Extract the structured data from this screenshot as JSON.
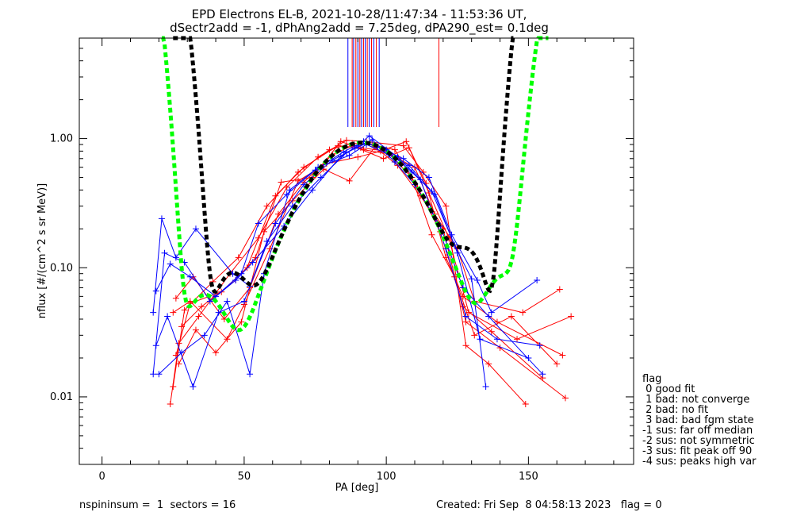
{
  "chart_data": {
    "type": "line",
    "title_line1": "EPD Electrons EL-B, 2021-10-28/11:47:34 - 11:53:36 UT,",
    "title_line2": "dSectr2add = -1, dPhAng2add = 7.25deg, dPA290_est=   0.1deg",
    "xlabel": "PA [deg]",
    "ylabel": "nflux [#/(cm^2 s sr MeV)]",
    "xlim": [
      -8,
      187
    ],
    "ylim": [
      0.003,
      6.0
    ],
    "yscale": "log",
    "x_ticks": [
      0,
      50,
      100,
      150
    ],
    "y_ticks": [
      0.01,
      0.1,
      1.0
    ],
    "x_tick_labels": [
      "0",
      "50",
      "100",
      "150"
    ],
    "y_tick_labels": [
      "0.01",
      "0.10",
      "1.00"
    ],
    "top_tick_colors": [
      "#0000ff",
      "#ff0000"
    ],
    "top_ticks_pa": [
      86.5,
      88.0,
      88.5,
      89.3,
      90.0,
      90.7,
      91.3,
      92.0,
      92.6,
      93.3,
      94.0,
      94.8,
      95.6,
      96.5,
      97.5,
      118.5
    ],
    "series": [
      {
        "color": "#ff0000",
        "values": [
          [
            24,
            0.0088
          ],
          [
            27,
            0.026
          ],
          [
            34,
            0.042
          ],
          [
            45,
            0.09
          ],
          [
            55,
            0.17
          ],
          [
            65,
            0.42
          ],
          [
            76,
            0.72
          ],
          [
            86,
            0.97
          ],
          [
            93,
            0.95
          ],
          [
            106,
            0.88
          ],
          [
            113,
            0.55
          ],
          [
            121,
            0.3
          ],
          [
            128,
            0.025
          ],
          [
            136,
            0.018
          ],
          [
            149,
            0.0088
          ]
        ]
      },
      {
        "color": "#ff0000",
        "values": [
          [
            25,
            0.012
          ],
          [
            29,
            0.047
          ],
          [
            39,
            0.078
          ],
          [
            48,
            0.12
          ],
          [
            58,
            0.3
          ],
          [
            69,
            0.55
          ],
          [
            80,
            0.82
          ],
          [
            88,
            0.92
          ],
          [
            95,
            0.9
          ],
          [
            103,
            0.82
          ],
          [
            111,
            0.42
          ],
          [
            119,
            0.19
          ],
          [
            127,
            0.05
          ],
          [
            137,
            0.032
          ],
          [
            155,
            0.014
          ]
        ]
      },
      {
        "color": "#ff0000",
        "values": [
          [
            26,
            0.021
          ],
          [
            31,
            0.053
          ],
          [
            42,
            0.065
          ],
          [
            51,
            0.1
          ],
          [
            61,
            0.36
          ],
          [
            71,
            0.6
          ],
          [
            83,
            0.88
          ],
          [
            91,
            0.85
          ],
          [
            100,
            0.8
          ],
          [
            109,
            0.5
          ],
          [
            116,
            0.18
          ],
          [
            124,
            0.085
          ],
          [
            131,
            0.03
          ],
          [
            144,
            0.042
          ],
          [
            160,
            0.018
          ]
        ]
      },
      {
        "color": "#ff0000",
        "values": [
          [
            27,
            0.018
          ],
          [
            33,
            0.033
          ],
          [
            40,
            0.022
          ],
          [
            49,
            0.038
          ],
          [
            57,
            0.19
          ],
          [
            67,
            0.33
          ],
          [
            78,
            0.58
          ],
          [
            87,
            0.47
          ],
          [
            96,
            0.86
          ],
          [
            104,
            0.62
          ],
          [
            112,
            0.36
          ],
          [
            120,
            0.2
          ],
          [
            128,
            0.038
          ],
          [
            140,
            0.024
          ],
          [
            163,
            0.0098
          ]
        ]
      },
      {
        "color": "#ff0000",
        "values": [
          [
            25,
            0.045
          ],
          [
            31,
            0.055
          ],
          [
            44,
            0.028
          ],
          [
            50,
            0.052
          ],
          [
            59,
            0.14
          ],
          [
            69,
            0.47
          ],
          [
            79,
            0.64
          ],
          [
            90,
            0.72
          ],
          [
            98,
            0.8
          ],
          [
            107,
            0.95
          ],
          [
            114,
            0.45
          ],
          [
            121,
            0.12
          ],
          [
            127,
            0.06
          ],
          [
            139,
            0.038
          ],
          [
            162,
            0.021
          ]
        ]
      },
      {
        "color": "#ff0000",
        "values": [
          [
            26,
            0.058
          ],
          [
            32,
            0.085
          ],
          [
            43,
            0.04
          ],
          [
            52,
            0.07
          ],
          [
            62,
            0.26
          ],
          [
            71,
            0.46
          ],
          [
            81,
            0.75
          ],
          [
            88,
            0.88
          ],
          [
            99,
            0.7
          ],
          [
            108,
            0.85
          ],
          [
            115,
            0.38
          ],
          [
            122,
            0.17
          ],
          [
            129,
            0.045
          ],
          [
            146,
            0.028
          ],
          [
            165,
            0.042
          ]
        ]
      },
      {
        "color": "#ff0000",
        "values": [
          [
            28,
            0.035
          ],
          [
            35,
            0.05
          ],
          [
            47,
            0.08
          ],
          [
            54,
            0.12
          ],
          [
            63,
            0.46
          ],
          [
            74,
            0.5
          ],
          [
            84,
            0.95
          ],
          [
            92,
            0.82
          ],
          [
            101,
            0.76
          ],
          [
            110,
            0.6
          ],
          [
            117,
            0.26
          ],
          [
            125,
            0.14
          ],
          [
            131,
            0.055
          ],
          [
            148,
            0.045
          ],
          [
            161,
            0.068
          ]
        ]
      },
      {
        "color": "#0000ff",
        "values": [
          [
            18,
            0.015
          ],
          [
            22,
            0.13
          ],
          [
            29,
            0.11
          ],
          [
            38,
            0.055
          ],
          [
            47,
            0.08
          ],
          [
            53,
            0.11
          ],
          [
            64,
            0.21
          ],
          [
            74,
            0.4
          ],
          [
            84,
            0.73
          ],
          [
            90,
            0.88
          ],
          [
            94,
            1.05
          ],
          [
            104,
            0.72
          ],
          [
            112,
            0.48
          ],
          [
            121,
            0.14
          ],
          [
            128,
            0.042
          ],
          [
            139,
            0.028
          ],
          [
            154,
            0.025
          ]
        ]
      },
      {
        "color": "#0000ff",
        "values": [
          [
            19,
            0.025
          ],
          [
            23,
            0.042
          ],
          [
            32,
            0.012
          ],
          [
            41,
            0.045
          ],
          [
            50,
            0.055
          ],
          [
            58,
            0.16
          ],
          [
            67,
            0.3
          ],
          [
            77,
            0.5
          ],
          [
            86,
            0.78
          ],
          [
            93,
            0.92
          ],
          [
            100,
            0.82
          ],
          [
            109,
            0.55
          ],
          [
            117,
            0.37
          ],
          [
            125,
            0.13
          ],
          [
            133,
            0.028
          ],
          [
            150,
            0.02
          ]
        ]
      },
      {
        "color": "#0000ff",
        "values": [
          [
            18,
            0.045
          ],
          [
            21,
            0.24
          ],
          [
            26,
            0.12
          ],
          [
            33,
            0.2
          ],
          [
            46,
            0.09
          ],
          [
            52,
            0.072
          ],
          [
            61,
            0.22
          ],
          [
            71,
            0.44
          ],
          [
            81,
            0.68
          ],
          [
            89,
            0.84
          ],
          [
            95,
            0.98
          ],
          [
            103,
            0.66
          ],
          [
            110,
            0.44
          ],
          [
            119,
            0.21
          ],
          [
            127,
            0.07
          ],
          [
            136,
            0.042
          ],
          [
            155,
            0.015
          ]
        ]
      },
      {
        "color": "#0000ff",
        "values": [
          [
            19,
            0.066
          ],
          [
            24,
            0.107
          ],
          [
            31,
            0.085
          ],
          [
            40,
            0.06
          ],
          [
            49,
            0.09
          ],
          [
            55,
            0.22
          ],
          [
            65,
            0.37
          ],
          [
            75,
            0.57
          ],
          [
            85,
            0.79
          ],
          [
            92,
            0.95
          ],
          [
            97,
            0.86
          ],
          [
            106,
            0.7
          ],
          [
            115,
            0.5
          ],
          [
            123,
            0.18
          ],
          [
            132,
            0.08
          ],
          [
            137,
            0.045
          ],
          [
            153,
            0.08
          ]
        ]
      },
      {
        "color": "#0000ff",
        "values": [
          [
            20,
            0.015
          ],
          [
            28,
            0.022
          ],
          [
            36,
            0.03
          ],
          [
            44,
            0.055
          ],
          [
            52,
            0.015
          ],
          [
            57,
            0.09
          ],
          [
            66,
            0.4
          ],
          [
            76,
            0.6
          ],
          [
            87,
            0.74
          ],
          [
            93,
            0.9
          ],
          [
            101,
            0.75
          ],
          [
            108,
            0.62
          ],
          [
            116,
            0.39
          ],
          [
            124,
            0.15
          ],
          [
            130,
            0.082
          ],
          [
            135,
            0.012
          ]
        ]
      }
    ],
    "fit_curves": [
      {
        "color": "#00ff00",
        "style": "dashed",
        "label_in_chart": false
      },
      {
        "color": "#000000",
        "style": "dashed",
        "label_in_chart": false
      }
    ],
    "legend": {
      "placement": "right",
      "title": "flag",
      "entries": [
        " 0 good fit",
        " 1 bad: not converge",
        " 2 bad: no fit",
        " 3 bad: bad fgm state",
        "-1 sus: far off median",
        "-2 sus: not symmetric",
        "-3 sus: fit peak off 90",
        "-4 sus: peaks high var"
      ]
    },
    "footer_left": "nspininsum =  1  sectors = 16",
    "footer_right": "Created: Fri Sep  8 04:58:13 2023   flag = 0"
  }
}
